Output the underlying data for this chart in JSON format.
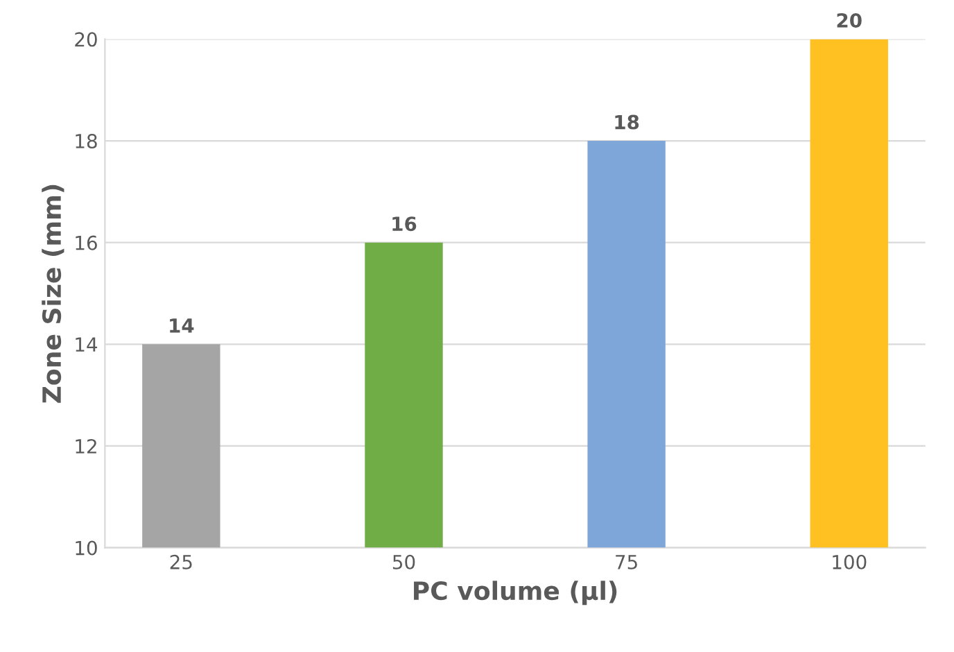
{
  "chart_data": {
    "type": "bar",
    "xlabel": "PC volume (µl)",
    "ylabel": "Zone Size (mm)",
    "categories": [
      "25",
      "50",
      "75",
      "100"
    ],
    "values": [
      14,
      16,
      18,
      20
    ],
    "colors": [
      "#a5a5a5",
      "#70ad47",
      "#7fa6d8",
      "#ffc022"
    ],
    "ylim": [
      10,
      20
    ],
    "yticks": [
      10,
      12,
      14,
      16,
      18,
      20
    ],
    "grid": "y",
    "data_labels": true
  }
}
